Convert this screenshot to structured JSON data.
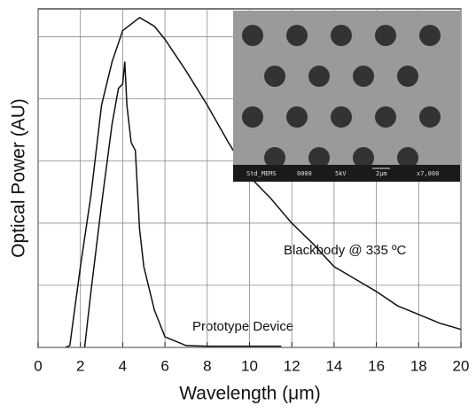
{
  "chart_data": {
    "type": "line",
    "xlabel": "Wavelength (μm)",
    "ylabel": "Optical Power (AU)",
    "xlim": [
      0,
      20
    ],
    "xticks": [
      0,
      2,
      4,
      6,
      8,
      10,
      12,
      14,
      16,
      18,
      20
    ],
    "ylim": [
      0,
      5.45
    ],
    "yticks": [
      0,
      1,
      2,
      3,
      4,
      5
    ],
    "grid": true,
    "series": [
      {
        "name": "Blackbody @ 335 ºC",
        "color": "#111111",
        "x": [
          1.3,
          1.5,
          2,
          2.5,
          3,
          3.5,
          4,
          4.8,
          5.5,
          6,
          7,
          8,
          9,
          10,
          11,
          12,
          13,
          14,
          15,
          16,
          17,
          18,
          19,
          20
        ],
        "values": [
          0,
          0.03,
          1.3,
          2.45,
          3.9,
          4.6,
          5.1,
          5.31,
          5.17,
          4.96,
          4.45,
          3.9,
          3.3,
          2.75,
          2.4,
          2.0,
          1.67,
          1.3,
          1.1,
          0.9,
          0.67,
          0.53,
          0.39,
          0.29
        ]
      },
      {
        "name": "Prototype Device",
        "color": "#111111",
        "x": [
          2.2,
          2.5,
          3,
          3.5,
          3.8,
          4,
          4.1,
          4.2,
          4.4,
          4.6,
          4.8,
          5,
          5.5,
          6,
          7,
          8,
          11.5
        ],
        "values": [
          0,
          0.9,
          2.3,
          3.6,
          4.17,
          4.24,
          4.6,
          3.9,
          3.3,
          3.17,
          1.9,
          1.3,
          0.6,
          0.17,
          0.03,
          0.02,
          0.02
        ]
      }
    ],
    "inset": {
      "labels": [
        "Std_MEMS",
        "0000",
        "5kV",
        "2μm",
        "x7,000"
      ]
    }
  }
}
